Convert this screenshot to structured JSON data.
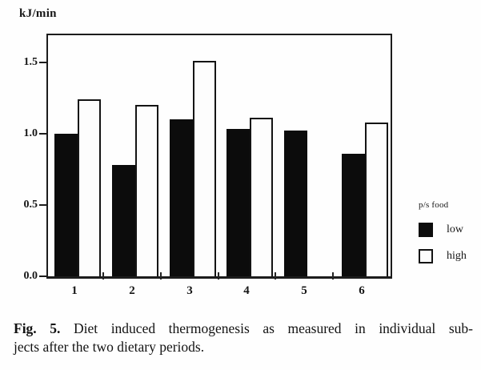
{
  "chart_data": {
    "type": "bar",
    "title": "",
    "ylabel": "kJ/min",
    "xlabel": "",
    "categories": [
      "1",
      "2",
      "3",
      "4",
      "5",
      "6"
    ],
    "series": [
      {
        "name": "low",
        "fill": "#0c0c0c",
        "values": [
          1.0,
          0.78,
          1.1,
          1.03,
          1.02,
          0.86
        ]
      },
      {
        "name": "high",
        "fill": "#ffffff",
        "values": [
          1.24,
          1.2,
          1.51,
          1.11,
          null,
          1.08
        ]
      }
    ],
    "ylim": [
      0,
      1.7
    ],
    "yticks": [
      "0.0",
      "0.5",
      "1.0",
      "1.5"
    ],
    "grid": false,
    "legend": {
      "title": "p/s food",
      "position": "right",
      "items": [
        "low",
        "high"
      ]
    }
  },
  "caption": {
    "label": "Fig. 5.",
    "line1": "Diet induced thermogenesis as measured in individual sub-",
    "line2": "jects after the two dietary periods."
  }
}
